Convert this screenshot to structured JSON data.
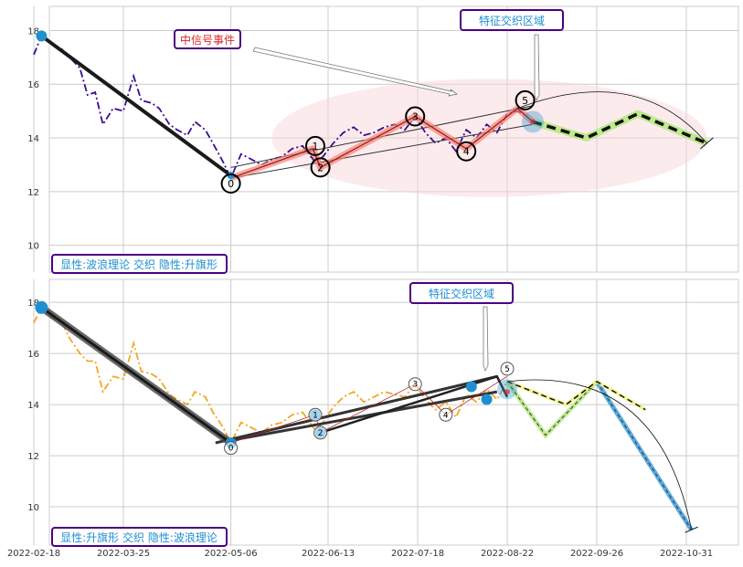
{
  "colors": {
    "panel_bg": "#ffffff",
    "grid": "#cccccc",
    "axis_text": "#333333",
    "label_border": "#4b0082",
    "label_text_blue": "#1f8fd1",
    "label_text_red": "#d62728",
    "top_price": "#3d0a91",
    "bottom_price": "#f5a623",
    "wave_black": "#1a1a1a",
    "wave_salmon": "#fa8072",
    "highlight_pink": "#f8d7da",
    "marker_blue": "#1f8fd1",
    "proj_green": "#b8e986",
    "proj_yellow": "#f3f38a",
    "proj_blue": "#4aa3df"
  },
  "x_ticks": [
    "2022-02-18",
    "2022-03-25",
    "2022-05-06",
    "2022-06-13",
    "2022-07-18",
    "2022-08-22",
    "2022-09-26",
    "2022-10-31"
  ],
  "top_panel": {
    "label": "显性:波浪理论 交织 隐性:升旗形",
    "zone_label": "特征交织区域",
    "event_label": "中信号事件",
    "yticks": [
      "10",
      "12",
      "14",
      "16",
      "18"
    ],
    "wave_numbers": [
      "0",
      "1",
      "2",
      "3",
      "4",
      "5"
    ]
  },
  "bottom_panel": {
    "label": "显性:升旗形 交织 隐性:波浪理论",
    "zone_label": "特征交织区域",
    "yticks": [
      "10",
      "12",
      "14",
      "16",
      "18"
    ],
    "wave_numbers": [
      "0",
      "1",
      "2",
      "3",
      "4",
      "5"
    ]
  },
  "chart_data": [
    {
      "type": "line",
      "panel": "top",
      "x_type": "date",
      "ylim": [
        9.0,
        18.9
      ],
      "grid": true,
      "series": [
        {
          "kind": "price",
          "points": [
            [
              "2022-02-18",
              17.1
            ],
            [
              "2022-02-21",
              17.8
            ],
            [
              "2022-02-25",
              17.5
            ],
            [
              "2022-03-01",
              17.3
            ],
            [
              "2022-03-04",
              17.0
            ],
            [
              "2022-03-08",
              16.6
            ],
            [
              "2022-03-11",
              15.6
            ],
            [
              "2022-03-14",
              15.7
            ],
            [
              "2022-03-17",
              14.5
            ],
            [
              "2022-03-21",
              15.1
            ],
            [
              "2022-03-25",
              15.0
            ],
            [
              "2022-03-29",
              16.3
            ],
            [
              "2022-04-01",
              15.4
            ],
            [
              "2022-04-05",
              15.3
            ],
            [
              "2022-04-08",
              15.1
            ],
            [
              "2022-04-12",
              14.5
            ],
            [
              "2022-04-15",
              14.3
            ],
            [
              "2022-04-19",
              14.1
            ],
            [
              "2022-04-22",
              14.6
            ],
            [
              "2022-04-26",
              14.3
            ],
            [
              "2022-04-29",
              13.8
            ],
            [
              "2022-05-03",
              13.1
            ],
            [
              "2022-05-06",
              12.5
            ],
            [
              "2022-05-10",
              13.4
            ],
            [
              "2022-05-14",
              13.2
            ],
            [
              "2022-05-18",
              13.0
            ],
            [
              "2022-05-22",
              13.2
            ],
            [
              "2022-05-26",
              13.3
            ],
            [
              "2022-05-30",
              13.6
            ],
            [
              "2022-06-03",
              13.7
            ],
            [
              "2022-06-08",
              13.1
            ],
            [
              "2022-06-11",
              13.3
            ],
            [
              "2022-06-15",
              13.8
            ],
            [
              "2022-06-19",
              14.2
            ],
            [
              "2022-06-23",
              14.4
            ],
            [
              "2022-06-27",
              14.1
            ],
            [
              "2022-07-01",
              14.2
            ],
            [
              "2022-07-05",
              14.4
            ],
            [
              "2022-07-09",
              14.5
            ],
            [
              "2022-07-13",
              14.3
            ],
            [
              "2022-07-17",
              14.8
            ],
            [
              "2022-07-21",
              14.2
            ],
            [
              "2022-07-25",
              13.8
            ],
            [
              "2022-07-29",
              14.0
            ],
            [
              "2022-08-02",
              13.5
            ],
            [
              "2022-08-06",
              14.3
            ],
            [
              "2022-08-10",
              14.0
            ],
            [
              "2022-08-14",
              14.5
            ],
            [
              "2022-08-18",
              14.2
            ],
            [
              "2022-08-22",
              14.9
            ],
            [
              "2022-08-26",
              15.0
            ],
            [
              "2022-08-30",
              14.8
            ]
          ]
        },
        {
          "kind": "wave_trend",
          "points": [
            [
              "2022-02-21",
              17.8
            ],
            [
              "2022-05-06",
              12.6
            ]
          ]
        },
        {
          "kind": "wave_path",
          "points": [
            [
              "2022-05-06",
              12.5
            ],
            [
              "2022-06-07",
              13.6
            ],
            [
              "2022-06-10",
              12.9
            ],
            [
              "2022-07-17",
              14.8
            ],
            [
              "2022-08-06",
              13.6
            ],
            [
              "2022-08-26",
              15.1
            ],
            [
              "2022-09-01",
              14.6
            ]
          ]
        },
        {
          "kind": "projection",
          "points": [
            [
              "2022-09-01",
              14.6
            ],
            [
              "2022-09-22",
              14.0
            ],
            [
              "2022-10-12",
              14.9
            ],
            [
              "2022-11-08",
              13.8
            ]
          ]
        },
        {
          "kind": "channel_upper",
          "points": [
            [
              "2022-05-06",
              12.9
            ],
            [
              "2022-09-01",
              15.2
            ]
          ]
        },
        {
          "kind": "channel_lower",
          "points": [
            [
              "2022-05-06",
              12.5
            ],
            [
              "2022-09-01",
              14.5
            ]
          ]
        }
      ],
      "wave_points": [
        {
          "label": "0",
          "x": "2022-05-06",
          "y": 12.3
        },
        {
          "label": "1",
          "x": "2022-06-08",
          "y": 13.7
        },
        {
          "label": "2",
          "x": "2022-06-10",
          "y": 12.9
        },
        {
          "label": "3",
          "x": "2022-07-17",
          "y": 14.8
        },
        {
          "label": "4",
          "x": "2022-08-06",
          "y": 13.5
        },
        {
          "label": "5",
          "x": "2022-08-29",
          "y": 15.4
        }
      ]
    },
    {
      "type": "line",
      "panel": "bottom",
      "x_type": "date",
      "ylim": [
        8.5,
        18.9
      ],
      "grid": true,
      "series": [
        {
          "kind": "price",
          "points": [
            [
              "2022-02-18",
              17.2
            ],
            [
              "2022-02-21",
              17.8
            ],
            [
              "2022-02-25",
              17.4
            ],
            [
              "2022-03-01",
              17.2
            ],
            [
              "2022-03-04",
              16.6
            ],
            [
              "2022-03-08",
              16.0
            ],
            [
              "2022-03-11",
              15.7
            ],
            [
              "2022-03-14",
              15.7
            ],
            [
              "2022-03-17",
              14.5
            ],
            [
              "2022-03-21",
              15.1
            ],
            [
              "2022-03-25",
              15.0
            ],
            [
              "2022-03-29",
              16.4
            ],
            [
              "2022-04-01",
              15.3
            ],
            [
              "2022-04-05",
              15.2
            ],
            [
              "2022-04-08",
              15.0
            ],
            [
              "2022-04-12",
              14.4
            ],
            [
              "2022-04-15",
              14.2
            ],
            [
              "2022-04-19",
              14.0
            ],
            [
              "2022-04-22",
              14.5
            ],
            [
              "2022-04-26",
              14.3
            ],
            [
              "2022-04-29",
              13.7
            ],
            [
              "2022-05-03",
              13.1
            ],
            [
              "2022-05-06",
              12.5
            ],
            [
              "2022-05-10",
              13.3
            ],
            [
              "2022-05-14",
              13.1
            ],
            [
              "2022-05-18",
              12.9
            ],
            [
              "2022-05-22",
              13.2
            ],
            [
              "2022-05-26",
              13.3
            ],
            [
              "2022-05-30",
              13.6
            ],
            [
              "2022-06-03",
              13.7
            ],
            [
              "2022-06-08",
              13.0
            ],
            [
              "2022-06-11",
              13.3
            ],
            [
              "2022-06-15",
              13.9
            ],
            [
              "2022-06-19",
              14.3
            ],
            [
              "2022-06-23",
              14.5
            ],
            [
              "2022-06-27",
              14.1
            ],
            [
              "2022-07-01",
              14.3
            ],
            [
              "2022-07-05",
              14.5
            ],
            [
              "2022-07-09",
              14.4
            ],
            [
              "2022-07-13",
              14.3
            ],
            [
              "2022-07-17",
              14.8
            ],
            [
              "2022-07-21",
              14.2
            ],
            [
              "2022-07-25",
              13.8
            ],
            [
              "2022-07-29",
              14.1
            ],
            [
              "2022-08-02",
              13.5
            ],
            [
              "2022-08-06",
              14.4
            ],
            [
              "2022-08-10",
              14.1
            ],
            [
              "2022-08-14",
              14.6
            ],
            [
              "2022-08-18",
              14.2
            ],
            [
              "2022-08-22",
              14.9
            ]
          ]
        },
        {
          "kind": "wave_trend",
          "points": [
            [
              "2022-02-21",
              17.8
            ],
            [
              "2022-05-06",
              12.5
            ]
          ]
        },
        {
          "kind": "channel",
          "points": [
            [
              "2022-04-30",
              12.5
            ],
            [
              "2022-08-18",
              15.1
            ]
          ]
        },
        {
          "kind": "channel",
          "points": [
            [
              "2022-05-06",
              12.6
            ],
            [
              "2022-08-18",
              14.5
            ]
          ]
        },
        {
          "kind": "projection",
          "points": [
            [
              "2022-08-22",
              14.9
            ],
            [
              "2022-09-06",
              12.8
            ],
            [
              "2022-09-26",
              14.9
            ],
            [
              "2022-11-02",
              9.1
            ]
          ]
        },
        {
          "kind": "projection_alt",
          "points": [
            [
              "2022-08-22",
              14.9
            ],
            [
              "2022-09-14",
              14.0
            ],
            [
              "2022-09-26",
              14.9
            ],
            [
              "2022-10-15",
              13.8
            ]
          ]
        }
      ],
      "markers": [
        {
          "x": "2022-02-21",
          "y": 17.8
        },
        {
          "x": "2022-05-06",
          "y": 12.5
        },
        {
          "x": "2022-06-08",
          "y": 13.6
        },
        {
          "x": "2022-06-10",
          "y": 12.9
        },
        {
          "x": "2022-08-08",
          "y": 14.7
        },
        {
          "x": "2022-08-14",
          "y": 14.2
        }
      ],
      "wave_points": [
        {
          "label": "0",
          "x": "2022-05-06",
          "y": 12.3
        },
        {
          "label": "1",
          "x": "2022-06-08",
          "y": 13.6
        },
        {
          "label": "2",
          "x": "2022-06-10",
          "y": 12.9
        },
        {
          "label": "3",
          "x": "2022-07-17",
          "y": 14.8
        },
        {
          "label": "4",
          "x": "2022-07-29",
          "y": 13.6
        },
        {
          "label": "5",
          "x": "2022-08-22",
          "y": 15.4
        }
      ]
    }
  ]
}
